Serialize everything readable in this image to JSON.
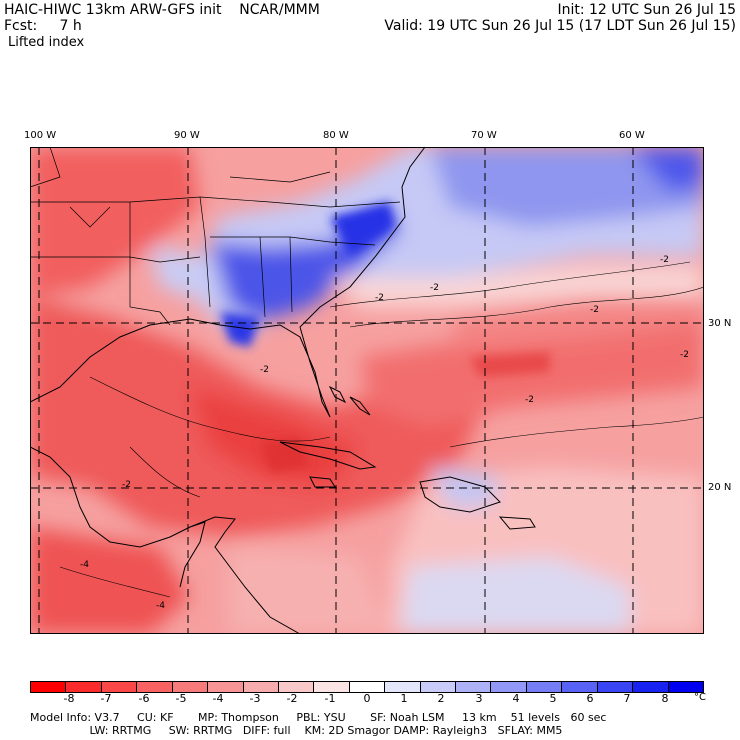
{
  "header": {
    "model_line": "HAIC-HIWC 13km ARW-GFS init    NCAR/MMM",
    "fcst_line": "Fcst:     7 h",
    "field_name": "Lifted index",
    "init_line": "Init: 12 UTC Sun 26 Jul 15",
    "valid_line": "Valid: 19 UTC Sun 26 Jul 15 (17 LDT Sun 26 Jul 15)"
  },
  "map": {
    "lon_labels": [
      "100 W",
      "90 W",
      "80 W",
      "70 W",
      "60 W"
    ],
    "lat_labels": [
      "30 N",
      "20 N"
    ],
    "contour_labels": [
      "-2",
      "-2",
      "-2",
      "-2",
      "-2",
      "-2",
      "-2",
      "-2",
      "-4",
      "-4"
    ]
  },
  "colorbar": {
    "unit": "°C",
    "labels": [
      "-8",
      "-7",
      "-6",
      "-5",
      "-4",
      "-3",
      "-2",
      "-1",
      "0",
      "1",
      "2",
      "3",
      "4",
      "5",
      "6",
      "7",
      "8"
    ],
    "colors": [
      "#ff0000",
      "#fc2b2b",
      "#fa4747",
      "#f86262",
      "#f77b7b",
      "#f79494",
      "#f7adad",
      "#f9c8c8",
      "#fbe4e4",
      "#ffffff",
      "#e4e6fb",
      "#c9ccf9",
      "#adb2f7",
      "#9198f6",
      "#757ef5",
      "#5862f4",
      "#3944f3",
      "#1823f2",
      "#0000f0"
    ]
  },
  "footer": {
    "line1": "Model Info: V3.7     CU: KF       MP: Thompson     PBL: YSU       SF: Noah LSM     13 km    51 levels   60 sec",
    "line2": "                 LW: RRTMG     SW: RRTMG   DIFF: full    KM: 2D Smagor DAMP: Rayleigh3   SFLAY: MM5"
  }
}
